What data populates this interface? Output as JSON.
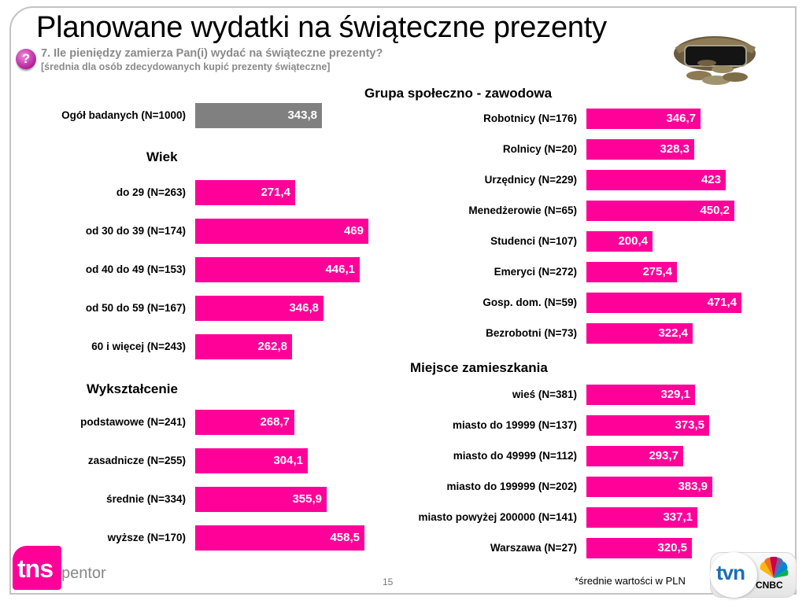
{
  "slide": {
    "title": "Planowane wydatki na świąteczne prezenty",
    "question_icon": "question-mark-icon",
    "question_mark": "?",
    "question": "7. Ile pieniędzy zamierza Pan(i) wydać na świąteczne prezenty?",
    "subquestion": "[średnia dla osób zdecydowanych kupić prezenty świąteczne]",
    "image": "coin-purse-photo",
    "footnote": "*średnie wartości w PLN",
    "page_number": "15",
    "logo_left": {
      "tns": "tns",
      "pentor": "pentor"
    },
    "logo_right": {
      "tvn": "tvn",
      "cnbc": "CNBC"
    },
    "colors": {
      "bar_primary": "#ff0099",
      "bar_total": "#808080"
    }
  },
  "chart_data": {
    "type": "bar",
    "orientation": "horizontal",
    "title": "Planowane wydatki na świąteczne prezenty",
    "unit": "PLN",
    "xlabel": "",
    "ylabel": "",
    "grid": false,
    "groups": [
      {
        "name": "",
        "categories": [
          "Ogół badanych (N=1000)"
        ],
        "values": [
          343.8
        ],
        "labels": [
          "343,8"
        ],
        "color": "#808080"
      },
      {
        "name": "Wiek",
        "categories": [
          "do 29 (N=263)",
          "od 30 do 39 (N=174)",
          "od 40 do 49 (N=153)",
          "od 50 do 59 (N=167)",
          "60 i więcej (N=243)"
        ],
        "values": [
          271.4,
          469,
          446.1,
          346.8,
          262.8
        ],
        "labels": [
          "271,4",
          "469",
          "446,1",
          "346,8",
          "262,8"
        ],
        "color": "#ff0099"
      },
      {
        "name": "Wykształcenie",
        "categories": [
          "podstawowe (N=241)",
          "zasadnicze (N=255)",
          "średnie (N=334)",
          "wyższe (N=170)"
        ],
        "values": [
          268.7,
          304.1,
          355.9,
          458.5
        ],
        "labels": [
          "268,7",
          "304,1",
          "355,9",
          "458,5"
        ],
        "color": "#ff0099"
      },
      {
        "name": "Grupa społeczno - zawodowa",
        "categories": [
          "Robotnicy (N=176)",
          "Rolnicy (N=20)",
          "Urzędnicy (N=229)",
          "Menedżerowie (N=65)",
          "Studenci (N=107)",
          "Emeryci (N=272)",
          "Gosp. dom. (N=59)",
          "Bezrobotni (N=73)"
        ],
        "values": [
          346.7,
          328.3,
          423,
          450.2,
          200.4,
          275.4,
          471.4,
          322.4
        ],
        "labels": [
          "346,7",
          "328,3",
          "423",
          "450,2",
          "200,4",
          "275,4",
          "471,4",
          "322,4"
        ],
        "color": "#ff0099"
      },
      {
        "name": "Miejsce zamieszkania",
        "categories": [
          "wieś (N=381)",
          "miasto do 19999 (N=137)",
          "miasto do 49999 (N=112)",
          "miasto do 199999 (N=202)",
          "miasto powyżej 200000 (N=141)",
          "Warszawa (N=27)"
        ],
        "values": [
          329.1,
          373.5,
          293.7,
          383.9,
          337.1,
          320.5
        ],
        "labels": [
          "329,1",
          "373,5",
          "293,7",
          "383,9",
          "337,1",
          "320,5"
        ],
        "color": "#ff0099"
      }
    ]
  }
}
